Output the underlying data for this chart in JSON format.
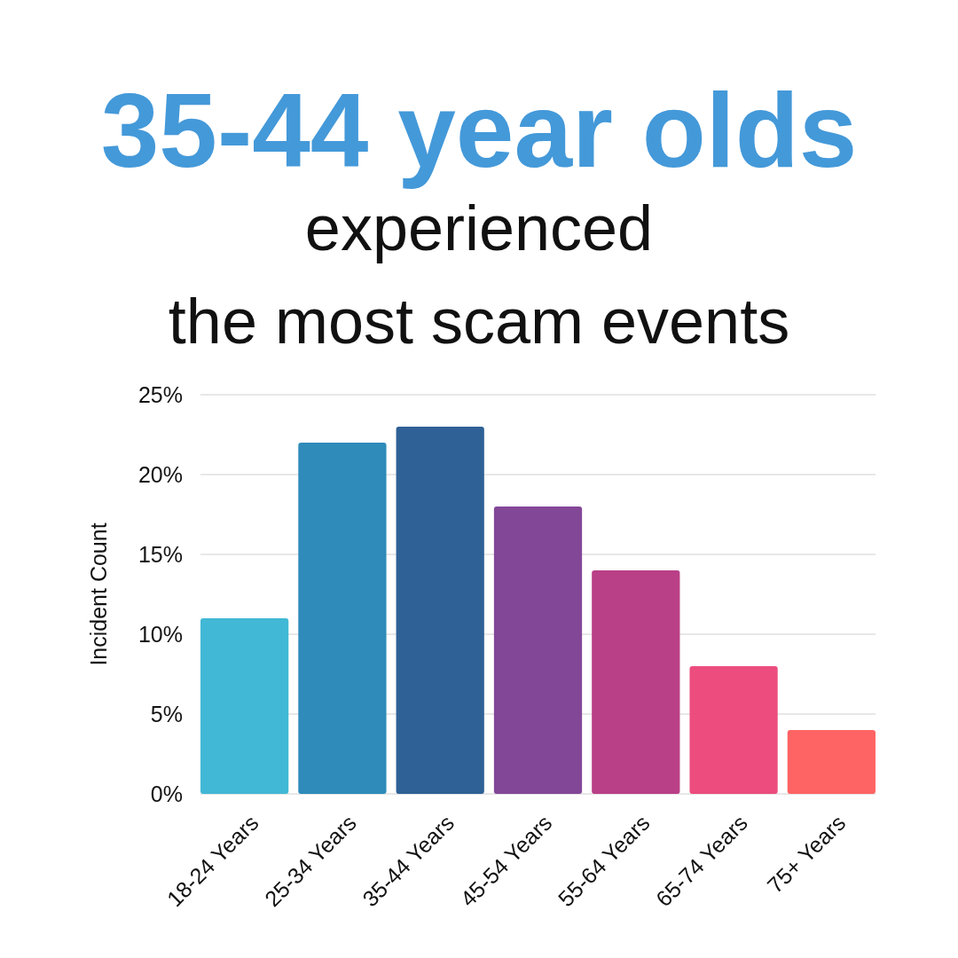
{
  "chart_data": {
    "type": "bar",
    "title": "35-44 year olds",
    "subtitle": "experienced\nthe most scam events",
    "ylabel": "Incident Count",
    "categories": [
      "18-24 Years",
      "25-34 Years",
      "35-44 Years",
      "45-54 Years",
      "55-64 Years",
      "65-74 Years",
      "75+ Years"
    ],
    "values": [
      11,
      22,
      23,
      18,
      14,
      8,
      4
    ],
    "colors": [
      "#41b8d5",
      "#2e8bba",
      "#2f6196",
      "#834797",
      "#b93f87",
      "#ec4d7e",
      "#fe6464"
    ],
    "ylim": [
      0,
      25
    ],
    "yticks": [
      {
        "value": 0,
        "label": "0%"
      },
      {
        "value": 5,
        "label": "5%"
      },
      {
        "value": 10,
        "label": "10%"
      },
      {
        "value": 15,
        "label": "15%"
      },
      {
        "value": 20,
        "label": "20%"
      },
      {
        "value": 25,
        "label": "25%"
      }
    ],
    "grid": "y"
  }
}
